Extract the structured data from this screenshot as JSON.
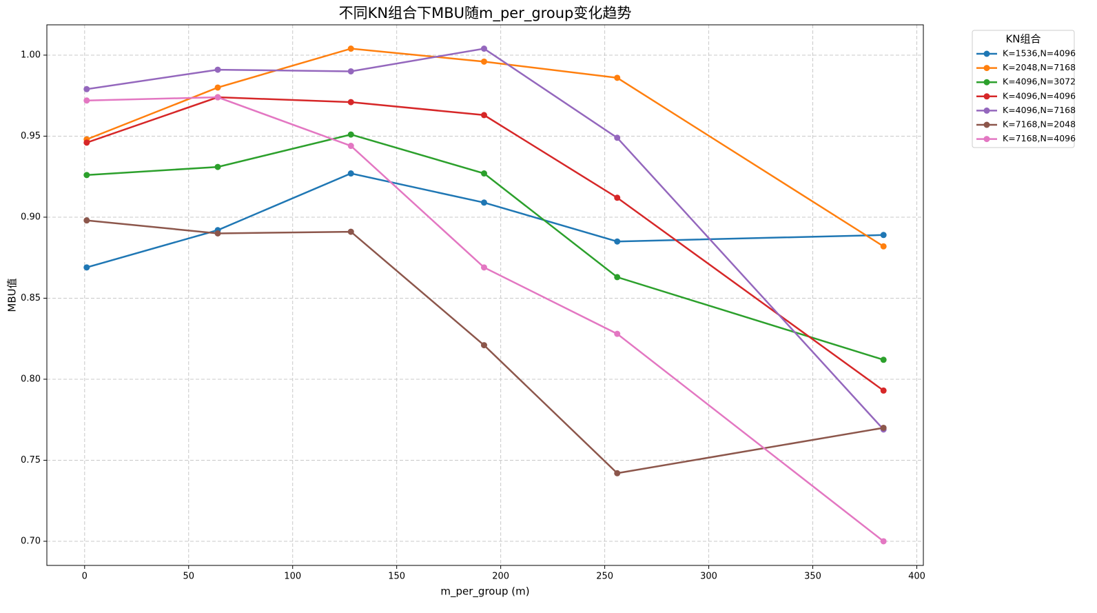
{
  "chart_data": {
    "type": "line",
    "title": "不同KN组合下MBU随m_per_group变化趋势",
    "x_label": "m_per_group (m)",
    "y_label": "MBU值",
    "x": [
      1,
      64,
      128,
      192,
      256,
      384
    ],
    "series": [
      {
        "name": "K=1536,N=4096",
        "color": "#1f77b4",
        "values": [
          0.869,
          0.892,
          0.927,
          0.909,
          0.885,
          0.889
        ]
      },
      {
        "name": "K=2048,N=7168",
        "color": "#ff7f0e",
        "values": [
          0.948,
          0.98,
          1.004,
          0.996,
          0.986,
          0.882
        ]
      },
      {
        "name": "K=4096,N=3072",
        "color": "#2ca02c",
        "values": [
          0.926,
          0.931,
          0.951,
          0.927,
          0.863,
          0.812
        ]
      },
      {
        "name": "K=4096,N=4096",
        "color": "#d62728",
        "values": [
          0.946,
          0.974,
          0.971,
          0.963,
          0.912,
          0.793
        ]
      },
      {
        "name": "K=4096,N=7168",
        "color": "#9467bd",
        "values": [
          0.979,
          0.991,
          0.99,
          1.004,
          0.949,
          0.769
        ]
      },
      {
        "name": "K=7168,N=2048",
        "color": "#8c564b",
        "values": [
          0.898,
          0.89,
          0.891,
          0.821,
          0.742,
          0.77
        ]
      },
      {
        "name": "K=7168,N=4096",
        "color": "#e377c2",
        "values": [
          0.972,
          0.974,
          0.944,
          0.869,
          0.828,
          0.7
        ]
      }
    ],
    "xlim": [
      -18.15,
      403.15
    ],
    "xticks": [
      0,
      50,
      100,
      150,
      200,
      250,
      300,
      350,
      400
    ],
    "ylim": [
      0.6851,
      1.0187
    ],
    "yticks": [
      {
        "value": 0.7,
        "label": "0.70"
      },
      {
        "value": 0.75,
        "label": "0.75"
      },
      {
        "value": 0.8,
        "label": "0.80"
      },
      {
        "value": 0.85,
        "label": "0.85"
      },
      {
        "value": 0.9,
        "label": "0.90"
      },
      {
        "value": 0.95,
        "label": "0.95"
      },
      {
        "value": 1.0,
        "label": "1.00"
      }
    ],
    "grid": true,
    "legend_title": "KN组合",
    "legend_position": "outside-right"
  }
}
